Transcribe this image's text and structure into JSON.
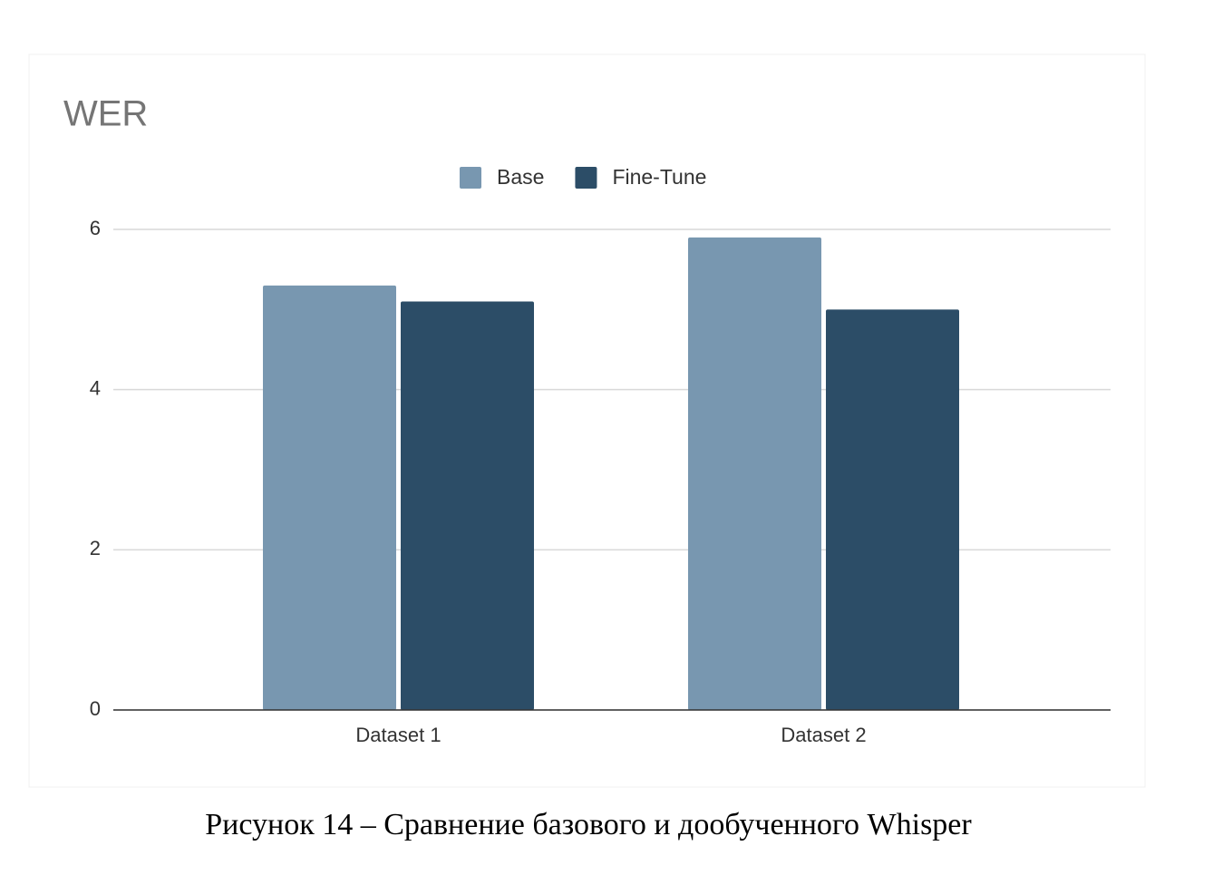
{
  "chart_data": {
    "type": "bar",
    "title": "WER",
    "categories": [
      "Dataset 1",
      "Dataset 2"
    ],
    "series": [
      {
        "name": "Base",
        "color": "#7897b0",
        "values": [
          5.3,
          5.9
        ]
      },
      {
        "name": "Fine-Tune",
        "color": "#2c4d67",
        "values": [
          5.1,
          5.0
        ]
      }
    ],
    "ylim": [
      0,
      6
    ],
    "yticks": [
      0,
      2,
      4,
      6
    ],
    "grid": true,
    "legend": "top"
  },
  "caption": "Рисунок 14 – Сравнение базового и дообученного Whisper"
}
